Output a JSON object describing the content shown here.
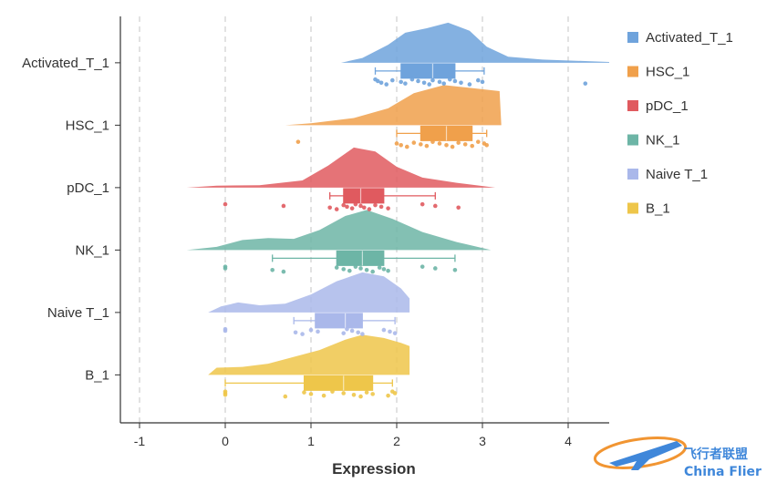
{
  "chart_data": {
    "type": "raincloud",
    "xlabel": "Expression",
    "xlim": [
      -1.2,
      4.5
    ],
    "xticks": [
      -1,
      0,
      1,
      2,
      3,
      4
    ],
    "grid": "vertical-dashed",
    "legend_position": "right",
    "series": [
      {
        "name": "Activated_T_1",
        "color": "#6fa3dc",
        "density": [
          [
            1.35,
            0.0
          ],
          [
            1.6,
            0.12
          ],
          [
            1.9,
            0.45
          ],
          [
            2.1,
            0.75
          ],
          [
            2.35,
            0.86
          ],
          [
            2.6,
            1.0
          ],
          [
            2.85,
            0.8
          ],
          [
            3.05,
            0.4
          ],
          [
            3.3,
            0.15
          ],
          [
            3.7,
            0.08
          ],
          [
            4.1,
            0.05
          ],
          [
            4.5,
            0.02
          ]
        ],
        "box": {
          "whisker_low": 1.75,
          "q1": 2.05,
          "median": 2.42,
          "q3": 2.68,
          "whisker_high": 3.02
        },
        "points": [
          1.75,
          1.78,
          1.82,
          1.88,
          1.95,
          2.05,
          2.1,
          2.18,
          2.25,
          2.32,
          2.38,
          2.42,
          2.5,
          2.55,
          2.62,
          2.68,
          2.75,
          2.85,
          2.95,
          3.0,
          4.2
        ]
      },
      {
        "name": "HSC_1",
        "color": "#f0a04b",
        "density": [
          [
            0.7,
            0.0
          ],
          [
            1.0,
            0.05
          ],
          [
            1.5,
            0.18
          ],
          [
            1.9,
            0.42
          ],
          [
            2.2,
            0.8
          ],
          [
            2.55,
            1.0
          ],
          [
            2.9,
            0.92
          ],
          [
            3.2,
            0.85
          ],
          [
            3.22,
            0.0
          ]
        ],
        "box": {
          "whisker_low": 2.0,
          "q1": 2.28,
          "median": 2.58,
          "q3": 2.88,
          "whisker_high": 3.05
        },
        "points": [
          0.85,
          2.0,
          2.05,
          2.12,
          2.2,
          2.28,
          2.35,
          2.42,
          2.5,
          2.58,
          2.65,
          2.72,
          2.8,
          2.88,
          2.95,
          3.02,
          3.05
        ]
      },
      {
        "name": "pDC_1",
        "color": "#e05a5f",
        "density": [
          [
            -0.45,
            0.0
          ],
          [
            -0.1,
            0.05
          ],
          [
            0.4,
            0.06
          ],
          [
            0.9,
            0.18
          ],
          [
            1.2,
            0.55
          ],
          [
            1.5,
            1.0
          ],
          [
            1.75,
            0.9
          ],
          [
            2.0,
            0.52
          ],
          [
            2.3,
            0.25
          ],
          [
            2.7,
            0.12
          ],
          [
            3.15,
            0.0
          ]
        ],
        "box": {
          "whisker_low": 1.22,
          "q1": 1.38,
          "median": 1.58,
          "q3": 1.85,
          "whisker_high": 2.45
        },
        "points": [
          0.0,
          0.68,
          1.22,
          1.3,
          1.38,
          1.42,
          1.48,
          1.52,
          1.58,
          1.62,
          1.68,
          1.75,
          1.82,
          1.9,
          2.3,
          2.45,
          2.72
        ]
      },
      {
        "name": "NK_1",
        "color": "#6db5a6",
        "density": [
          [
            -0.45,
            0.0
          ],
          [
            -0.1,
            0.08
          ],
          [
            0.2,
            0.25
          ],
          [
            0.5,
            0.3
          ],
          [
            0.8,
            0.28
          ],
          [
            1.1,
            0.5
          ],
          [
            1.4,
            0.85
          ],
          [
            1.65,
            1.0
          ],
          [
            1.95,
            0.78
          ],
          [
            2.3,
            0.45
          ],
          [
            2.7,
            0.2
          ],
          [
            3.1,
            0.0
          ]
        ],
        "box": {
          "whisker_low": 0.55,
          "q1": 1.3,
          "median": 1.6,
          "q3": 1.85,
          "whisker_high": 2.68
        },
        "points": [
          0.0,
          0.0,
          0.55,
          0.68,
          1.3,
          1.38,
          1.45,
          1.52,
          1.58,
          1.65,
          1.72,
          1.8,
          1.85,
          1.9,
          2.3,
          2.45,
          2.68
        ]
      },
      {
        "name": "Naive T_1",
        "color": "#aab8ea",
        "density": [
          [
            -0.2,
            0.0
          ],
          [
            -0.05,
            0.15
          ],
          [
            0.15,
            0.25
          ],
          [
            0.4,
            0.18
          ],
          [
            0.7,
            0.22
          ],
          [
            1.0,
            0.45
          ],
          [
            1.3,
            0.78
          ],
          [
            1.6,
            1.0
          ],
          [
            1.85,
            0.9
          ],
          [
            2.05,
            0.6
          ],
          [
            2.15,
            0.35
          ],
          [
            2.15,
            0.0
          ]
        ],
        "box": {
          "whisker_low": 0.8,
          "q1": 1.05,
          "median": 1.4,
          "q3": 1.6,
          "whisker_high": 1.98
        },
        "points": [
          0.0,
          0.0,
          0.82,
          0.9,
          1.0,
          1.08,
          1.38,
          1.42,
          1.48,
          1.55,
          1.6,
          1.85,
          1.92,
          1.98
        ]
      },
      {
        "name": "B_1",
        "color": "#eec64a",
        "density": [
          [
            -0.2,
            0.0
          ],
          [
            -0.1,
            0.18
          ],
          [
            0.2,
            0.2
          ],
          [
            0.5,
            0.28
          ],
          [
            0.8,
            0.45
          ],
          [
            1.1,
            0.62
          ],
          [
            1.4,
            0.88
          ],
          [
            1.6,
            1.0
          ],
          [
            1.85,
            0.92
          ],
          [
            2.05,
            0.8
          ],
          [
            2.15,
            0.72
          ],
          [
            2.15,
            0.0
          ]
        ],
        "box": {
          "whisker_low": 0.0,
          "q1": 0.92,
          "median": 1.38,
          "q3": 1.72,
          "whisker_high": 1.95
        },
        "points": [
          0.0,
          0.0,
          0.0,
          0.7,
          0.92,
          1.0,
          1.15,
          1.25,
          1.38,
          1.5,
          1.58,
          1.65,
          1.72,
          1.9,
          1.95,
          1.98
        ]
      }
    ]
  },
  "watermark": {
    "name_cn": "飞行者联盟",
    "name_en": "China Flier",
    "colors": {
      "blue": "#2b7bd6",
      "orange": "#f08a1c"
    }
  }
}
